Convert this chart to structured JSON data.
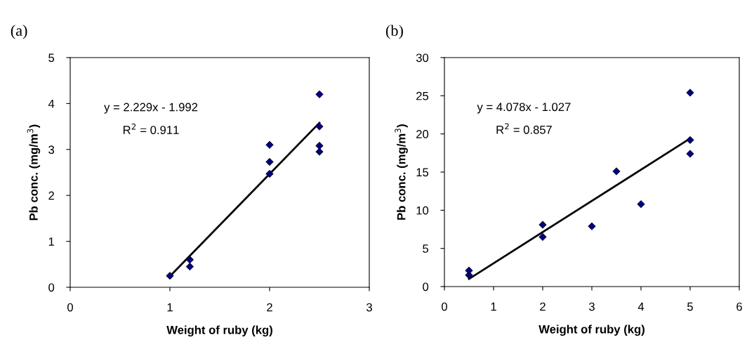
{
  "chart_data": [
    {
      "type": "scatter",
      "title": "(a)",
      "xlabel": "Weight of ruby (kg)",
      "ylabel": "Pb conc. (mg/m$^{3}$)",
      "xlim": [
        0,
        3
      ],
      "xticks": [
        0,
        1,
        2,
        3
      ],
      "ylim": [
        0,
        5
      ],
      "yticks": [
        0,
        1,
        2,
        3,
        4,
        5
      ],
      "grid": false,
      "legend": false,
      "annotations": [
        "y = 2.229x - 1.992",
        "R$^{2}$ = 0.911"
      ],
      "series": [
        {
          "color": "#000080",
          "marker": "diamond",
          "x": [
            1,
            1.2,
            1.2,
            2,
            2,
            2,
            2.5,
            2.5,
            2.5,
            2.5
          ],
          "values": [
            0.25,
            0.6,
            0.45,
            3.1,
            2.73,
            2.47,
            4.2,
            3.5,
            3.08,
            2.95
          ]
        },
        {
          "type": "line",
          "color": "#000000",
          "marker": "none",
          "line_style": "solid",
          "x": [
            1,
            2.5
          ],
          "values": [
            0.24,
            3.58
          ]
        }
      ]
    },
    {
      "type": "scatter",
      "title": "(b)",
      "xlabel": "Weight of ruby (kg)",
      "ylabel": "Pb conc. (mg/m$^{3}$)",
      "xlim": [
        0,
        6
      ],
      "xticks": [
        0,
        1,
        2,
        3,
        4,
        5,
        6
      ],
      "ylim": [
        0,
        30
      ],
      "yticks": [
        0,
        5,
        10,
        15,
        20,
        25,
        30
      ],
      "grid": false,
      "legend": false,
      "annotations": [
        "y = 4.078x - 1.027",
        "R$^{2}$ = 0.857"
      ],
      "series": [
        {
          "color": "#000080",
          "marker": "diamond",
          "x": [
            0.5,
            0.5,
            2,
            2,
            3,
            3.5,
            4,
            5,
            5,
            5
          ],
          "values": [
            2.1,
            1.5,
            8.1,
            6.5,
            7.9,
            15.1,
            10.8,
            25.4,
            19.2,
            17.4
          ]
        },
        {
          "type": "line",
          "color": "#000000",
          "marker": "none",
          "line_style": "solid",
          "x": [
            0.5,
            5
          ],
          "values": [
            1.0,
            19.4
          ]
        }
      ]
    }
  ]
}
